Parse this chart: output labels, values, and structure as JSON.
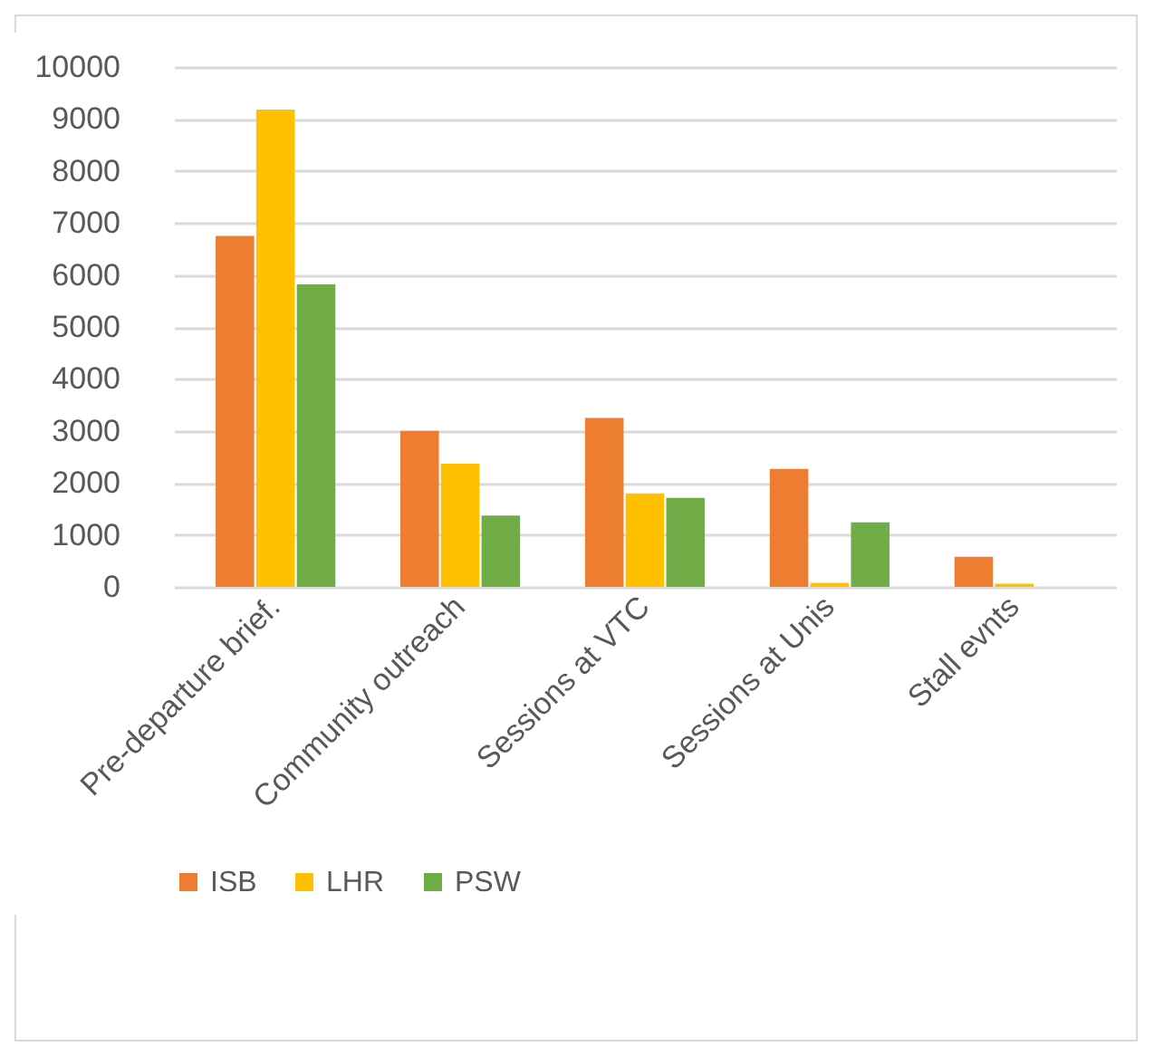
{
  "chart_data": {
    "type": "bar",
    "categories": [
      "Pre-departure brief.",
      "Community outreach",
      "Sessions at VTC",
      "Sessions at Unis",
      "Stall evnts"
    ],
    "series": [
      {
        "name": "ISB",
        "color": "#ed7d31",
        "values": [
          6750,
          3000,
          3250,
          2270,
          580
        ]
      },
      {
        "name": "LHR",
        "color": "#ffc000",
        "values": [
          9180,
          2370,
          1800,
          80,
          60
        ]
      },
      {
        "name": "PSW",
        "color": "#70ad47",
        "values": [
          5820,
          1370,
          1710,
          1240,
          0
        ]
      }
    ],
    "ylim": [
      0,
      10000
    ],
    "yticks": [
      0,
      1000,
      2000,
      3000,
      4000,
      5000,
      6000,
      7000,
      8000,
      9000,
      10000
    ],
    "grid": "y",
    "legend": "bottom"
  }
}
